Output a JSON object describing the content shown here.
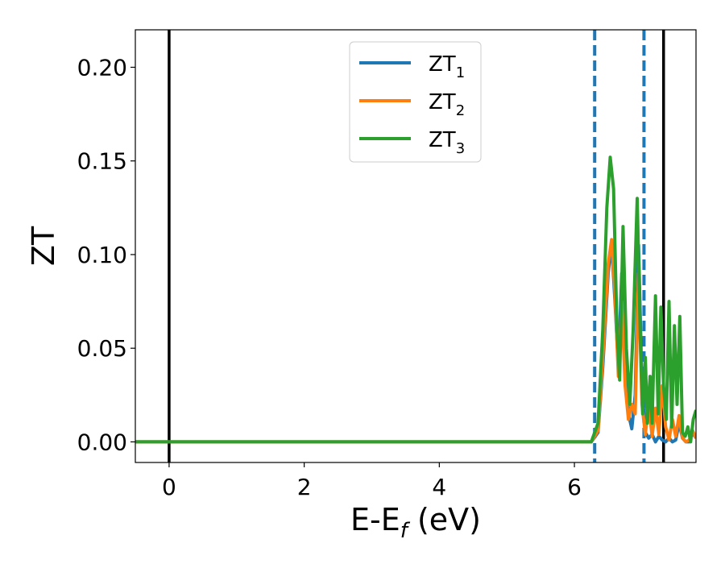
{
  "chart_data": {
    "type": "line",
    "xlabel": "E-E_f (eV)",
    "ylabel": "ZT",
    "xlim": [
      -0.5,
      7.8
    ],
    "ylim": [
      -0.011,
      0.22
    ],
    "x_ticks": [
      0,
      2,
      4,
      6
    ],
    "x_tick_labels": [
      "0",
      "2",
      "4",
      "6"
    ],
    "y_ticks": [
      0.0,
      0.05,
      0.1,
      0.15,
      0.2
    ],
    "y_tick_labels": [
      "0.00",
      "0.05",
      "0.10",
      "0.15",
      "0.20"
    ],
    "grid": false,
    "legend_position": "upper-center",
    "vertical_lines": [
      {
        "x": 0.0,
        "style": "solid",
        "color": "#000000"
      },
      {
        "x": 7.32,
        "style": "solid",
        "color": "#000000"
      },
      {
        "x": 6.3,
        "style": "dashed",
        "color": "#1f77b4"
      },
      {
        "x": 7.03,
        "style": "dashed",
        "color": "#1f77b4"
      }
    ],
    "series": [
      {
        "name": "ZT_1",
        "legend_base": "ZT",
        "legend_sub": "1",
        "color": "#1f77b4",
        "points": [
          [
            -0.5,
            0.0
          ],
          [
            6.25,
            0.0
          ],
          [
            6.35,
            0.005
          ],
          [
            6.42,
            0.04
          ],
          [
            6.5,
            0.09
          ],
          [
            6.55,
            0.106
          ],
          [
            6.6,
            0.075
          ],
          [
            6.65,
            0.04
          ],
          [
            6.7,
            0.09
          ],
          [
            6.75,
            0.04
          ],
          [
            6.8,
            0.015
          ],
          [
            6.85,
            0.007
          ],
          [
            6.9,
            0.025
          ],
          [
            6.95,
            0.105
          ],
          [
            7.0,
            0.03
          ],
          [
            7.05,
            0.005
          ],
          [
            7.1,
            0.002
          ],
          [
            7.15,
            0.004
          ],
          [
            7.2,
            0.0
          ],
          [
            7.25,
            0.003
          ],
          [
            7.3,
            0.001
          ],
          [
            7.35,
            0.0
          ],
          [
            7.4,
            0.002
          ],
          [
            7.45,
            0.0
          ],
          [
            7.5,
            0.001
          ],
          [
            7.55,
            0.01
          ],
          [
            7.6,
            0.002
          ],
          [
            7.65,
            0.0
          ],
          [
            7.7,
            0.0
          ],
          [
            7.75,
            0.005
          ],
          [
            7.8,
            0.002
          ]
        ]
      },
      {
        "name": "ZT_2",
        "legend_base": "ZT",
        "legend_sub": "2",
        "color": "#ff7f0e",
        "points": [
          [
            -0.5,
            0.0
          ],
          [
            6.25,
            0.0
          ],
          [
            6.35,
            0.006
          ],
          [
            6.42,
            0.045
          ],
          [
            6.5,
            0.095
          ],
          [
            6.55,
            0.108
          ],
          [
            6.6,
            0.08
          ],
          [
            6.65,
            0.035
          ],
          [
            6.7,
            0.075
          ],
          [
            6.75,
            0.03
          ],
          [
            6.8,
            0.012
          ],
          [
            6.85,
            0.02
          ],
          [
            6.9,
            0.015
          ],
          [
            6.95,
            0.09
          ],
          [
            7.0,
            0.02
          ],
          [
            7.05,
            0.004
          ],
          [
            7.1,
            0.02
          ],
          [
            7.15,
            0.003
          ],
          [
            7.2,
            0.018
          ],
          [
            7.25,
            0.004
          ],
          [
            7.3,
            0.03
          ],
          [
            7.35,
            0.008
          ],
          [
            7.4,
            0.001
          ],
          [
            7.45,
            0.012
          ],
          [
            7.5,
            0.003
          ],
          [
            7.55,
            0.014
          ],
          [
            7.6,
            0.002
          ],
          [
            7.65,
            0.0
          ],
          [
            7.7,
            0.001
          ],
          [
            7.75,
            0.006
          ],
          [
            7.8,
            0.002
          ]
        ]
      },
      {
        "name": "ZT_3",
        "legend_base": "ZT",
        "legend_sub": "3",
        "color": "#2ca02c",
        "points": [
          [
            -0.5,
            0.0
          ],
          [
            6.25,
            0.0
          ],
          [
            6.35,
            0.01
          ],
          [
            6.42,
            0.06
          ],
          [
            6.48,
            0.125
          ],
          [
            6.53,
            0.152
          ],
          [
            6.58,
            0.135
          ],
          [
            6.63,
            0.06
          ],
          [
            6.67,
            0.033
          ],
          [
            6.72,
            0.115
          ],
          [
            6.77,
            0.05
          ],
          [
            6.82,
            0.02
          ],
          [
            6.87,
            0.06
          ],
          [
            6.93,
            0.13
          ],
          [
            6.98,
            0.05
          ],
          [
            7.01,
            0.015
          ],
          [
            7.05,
            0.045
          ],
          [
            7.08,
            0.01
          ],
          [
            7.12,
            0.035
          ],
          [
            7.15,
            0.01
          ],
          [
            7.2,
            0.078
          ],
          [
            7.24,
            0.015
          ],
          [
            7.28,
            0.072
          ],
          [
            7.32,
            0.03
          ],
          [
            7.36,
            0.012
          ],
          [
            7.4,
            0.075
          ],
          [
            7.44,
            0.008
          ],
          [
            7.48,
            0.062
          ],
          [
            7.52,
            0.02
          ],
          [
            7.56,
            0.067
          ],
          [
            7.6,
            0.005
          ],
          [
            7.64,
            0.003
          ],
          [
            7.68,
            0.008
          ],
          [
            7.72,
            0.0
          ],
          [
            7.76,
            0.012
          ],
          [
            7.8,
            0.017
          ]
        ]
      }
    ]
  }
}
